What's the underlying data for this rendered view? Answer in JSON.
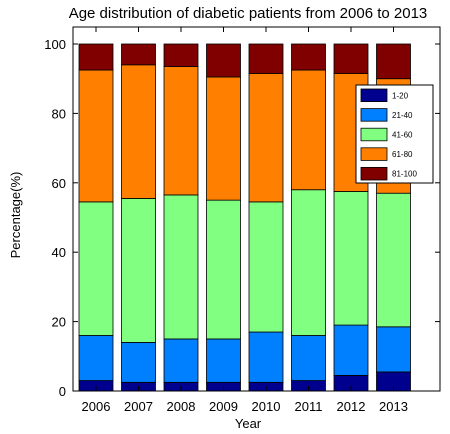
{
  "chart_data": {
    "type": "bar",
    "stacked": true,
    "title": "Age distribution of diabetic patients from 2006 to 2013",
    "xlabel": "Year",
    "ylabel": "Percentage(%)",
    "ylim": [
      0,
      100
    ],
    "yticks": [
      "0",
      "20",
      "40",
      "60",
      "80",
      "100"
    ],
    "categories": [
      "2006",
      "2007",
      "2008",
      "2009",
      "2010",
      "2011",
      "2012",
      "2013"
    ],
    "legend_position": "top-right",
    "grid": false,
    "series": [
      {
        "name": "1-20",
        "color": "#00008f",
        "values": [
          3.0,
          2.5,
          2.5,
          2.5,
          2.5,
          3.0,
          4.5,
          5.5
        ]
      },
      {
        "name": "21-40",
        "color": "#0080ff",
        "values": [
          13.0,
          11.5,
          12.5,
          12.5,
          14.5,
          13.0,
          14.5,
          13.0
        ]
      },
      {
        "name": "41-60",
        "color": "#80ff80",
        "values": [
          38.5,
          41.5,
          41.5,
          40.0,
          37.5,
          42.0,
          38.5,
          38.5
        ]
      },
      {
        "name": "61-80",
        "color": "#ff8000",
        "values": [
          38.0,
          38.5,
          37.0,
          35.5,
          37.0,
          34.5,
          34.0,
          33.0
        ]
      },
      {
        "name": "81-100",
        "color": "#800000",
        "values": [
          7.5,
          6.0,
          6.5,
          9.5,
          8.5,
          7.5,
          8.5,
          10.0
        ]
      }
    ]
  }
}
